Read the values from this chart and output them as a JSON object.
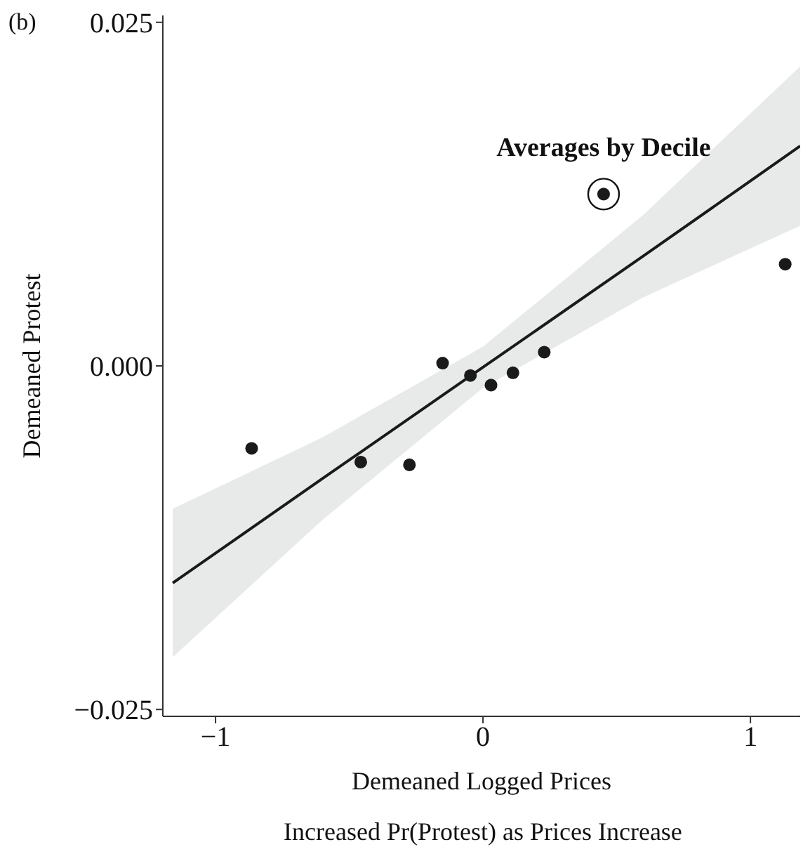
{
  "chart_data": {
    "type": "scatter",
    "xlabel": "Demeaned Logged Prices",
    "ylabel": "Demeaned Protest",
    "annotations": [
      "(b)",
      {
        "text": "Averages by Decile",
        "x": 0.451,
        "y": 0.0125
      },
      "Increased Pr(Protest) as Prices Increase"
    ],
    "series": [
      {
        "type": "line",
        "x": [
          -1.16,
          -0.6,
          0,
          0.6,
          1.186
        ],
        "values": [
          -0.0158,
          -0.0082,
          -0.0001,
          0.008,
          0.016
        ],
        "lower": [
          -0.0212,
          -0.0112,
          -0.0016,
          0.005,
          0.0102
        ],
        "upper": [
          -0.0104,
          -0.0052,
          0.0014,
          0.011,
          0.0218
        ],
        "color": "#1a1a1a",
        "marker": "none"
      },
      {
        "x": [
          -0.865,
          -0.457,
          -0.275,
          -0.151,
          -0.047,
          0.03,
          0.112,
          0.229,
          0.451,
          1.13
        ],
        "values": [
          -0.006,
          -0.007,
          -0.0072,
          0.0002,
          -0.0007,
          -0.0014,
          -0.0005,
          0.001,
          0.0125,
          0.0074
        ],
        "color": "#1a1a1a"
      }
    ],
    "xlim": [
      -1.197,
      1.186
    ],
    "ylim": [
      -0.0255,
      0.0255
    ],
    "xticks": [
      {
        "value": -1,
        "label": "−1"
      },
      0,
      1
    ],
    "yticks": [
      {
        "value": -0.025,
        "label": "−0.025"
      },
      {
        "value": 0,
        "label": "0.000"
      },
      0.025
    ],
    "grid": false,
    "legend": false,
    "marker": "circle",
    "line_style": "solid"
  }
}
